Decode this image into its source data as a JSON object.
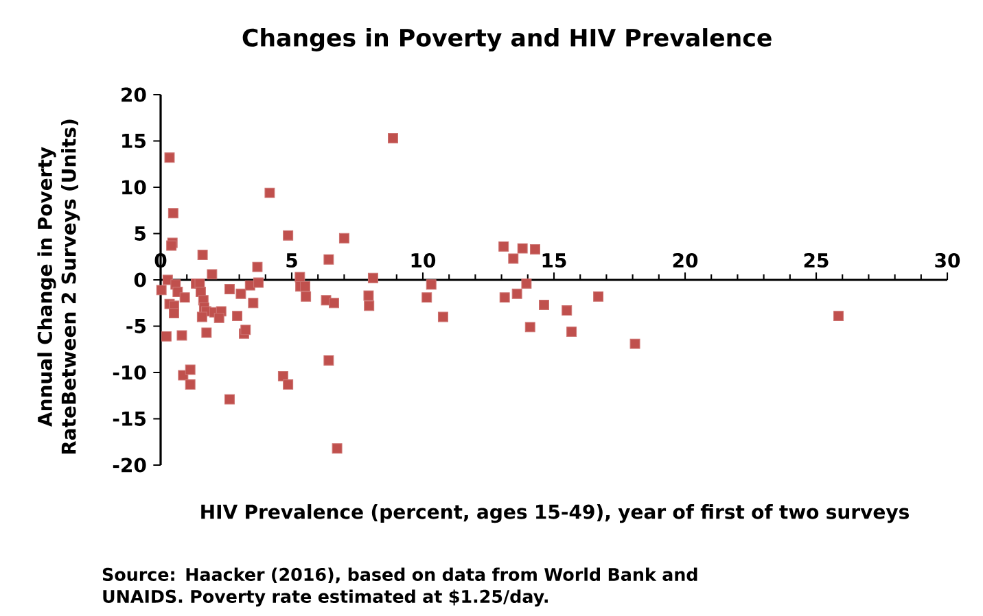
{
  "chart_data": {
    "type": "scatter",
    "title": "Changes in Poverty and HIV Prevalence",
    "xlabel": "HIV Prevalence (percent, ages 15-49), year of first of two surveys",
    "ylabel": "Annual Change in Poverty RateBetween 2 Surveys (Units)",
    "annotations": [
      "Source: Haacker (2016), based on data from World Bank and UNAIDS. Poverty rate estimated at $1.25/day."
    ],
    "marker": "square",
    "xlim": [
      0,
      30
    ],
    "ylim": [
      -20,
      20
    ],
    "xticks": [
      0,
      5,
      10,
      15,
      20,
      25,
      30
    ],
    "yticks": [
      -20,
      -15,
      -10,
      -5,
      0,
      5,
      10,
      15,
      20
    ],
    "series": [
      {
        "color": "#c0504d",
        "x": [
          0.34,
          0.48,
          0.45,
          0.41,
          0.27,
          0.03,
          0.57,
          0.65,
          0.92,
          0.34,
          0.51,
          0.51,
          0.22,
          0.81,
          0.86,
          1.13,
          1.13,
          1.6,
          1.96,
          1.35,
          1.49,
          1.53,
          1.63,
          1.66,
          1.74,
          1.58,
          2.05,
          2.31,
          2.23,
          1.75,
          2.63,
          2.92,
          3.06,
          3.18,
          3.24,
          2.63,
          3.41,
          3.73,
          3.69,
          3.53,
          4.16,
          4.86,
          4.67,
          4.86,
          5.31,
          5.33,
          5.51,
          5.54,
          6.41,
          6.31,
          6.61,
          6.41,
          7.0,
          6.73,
          7.93,
          7.95,
          8.1,
          8.86,
          10.32,
          10.15,
          10.77,
          13.08,
          13.45,
          13.8,
          14.28,
          13.12,
          13.59,
          13.95,
          14.09,
          14.62,
          15.49,
          15.67,
          16.69,
          18.09,
          25.85
        ],
        "values": [
          13.2,
          7.2,
          4.0,
          3.7,
          0,
          -1.1,
          -0.5,
          -1.3,
          -1.9,
          -2.6,
          -2.8,
          -3.6,
          -6.1,
          -6.0,
          -10.3,
          -9.7,
          -11.3,
          2.7,
          0.6,
          -0.4,
          -0.4,
          -1.3,
          -2.2,
          -3.0,
          -3.4,
          -4.0,
          -3.5,
          -3.4,
          -4.1,
          -5.7,
          -1.0,
          -3.9,
          -1.5,
          -5.8,
          -5.4,
          -12.9,
          -0.6,
          -0.3,
          1.4,
          -2.5,
          9.4,
          4.8,
          -10.4,
          -11.3,
          0.3,
          -0.7,
          -0.7,
          -1.8,
          2.2,
          -2.2,
          -2.5,
          -8.7,
          4.5,
          -18.2,
          -1.7,
          -2.8,
          0.2,
          15.3,
          -0.5,
          -1.9,
          -4.0,
          3.6,
          2.3,
          3.4,
          3.3,
          -1.9,
          -1.5,
          -0.4,
          -5.1,
          -2.7,
          -3.3,
          -5.6,
          -1.8,
          -6.9,
          -3.9
        ]
      }
    ]
  }
}
